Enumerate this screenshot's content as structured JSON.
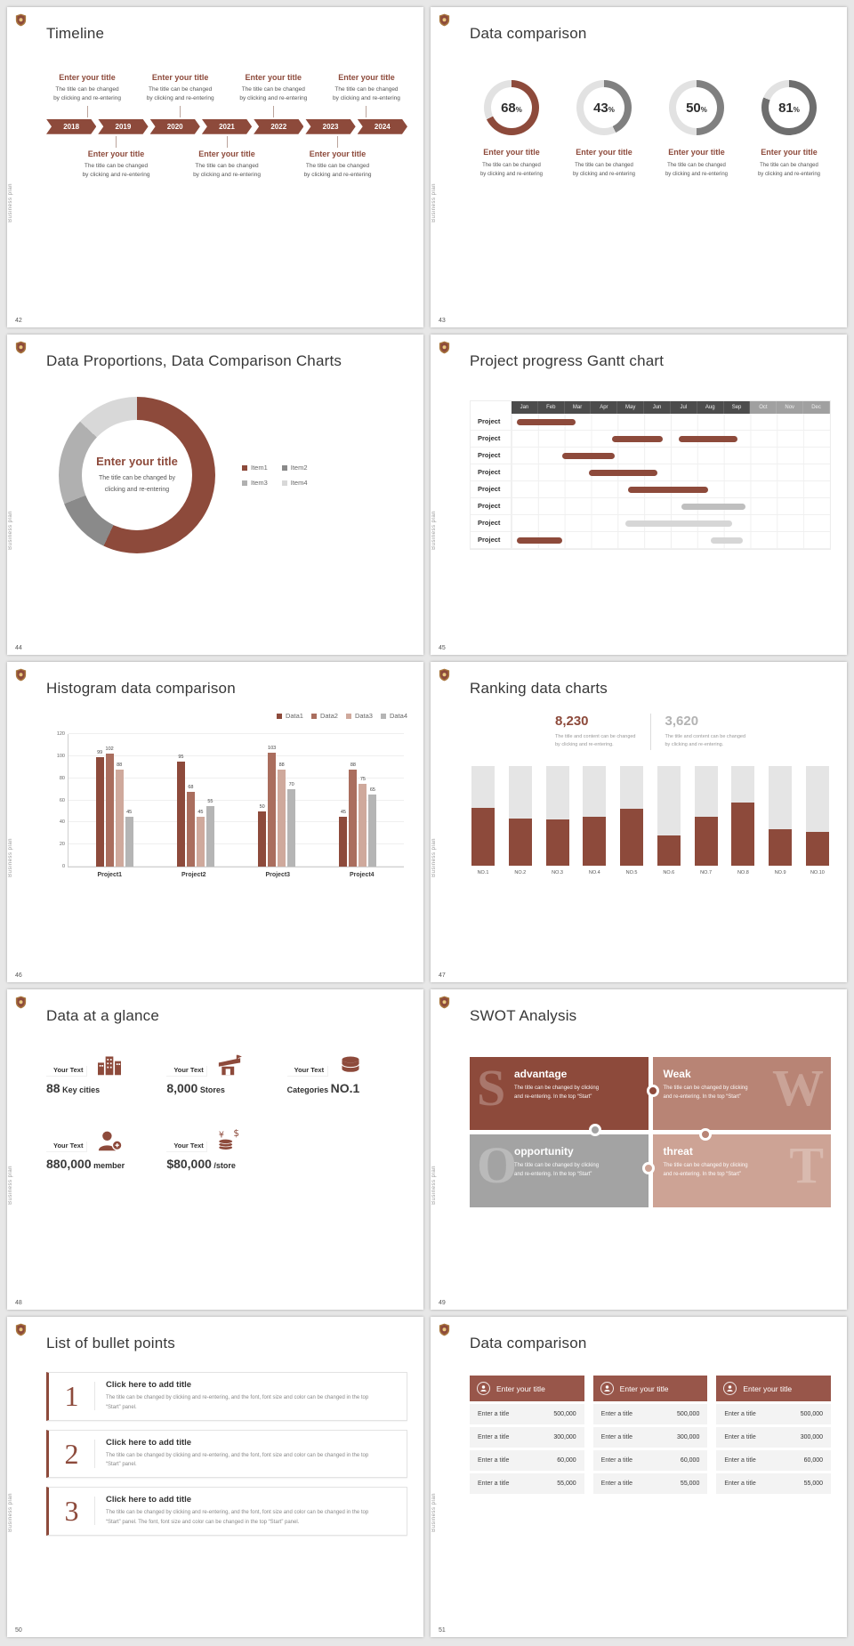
{
  "chrome": {
    "side_label": "Business plan",
    "accent_color": "#8d4a3b",
    "background_color": "#e7e7e7"
  },
  "slides": {
    "s42": {
      "number": "42",
      "title": "Timeline",
      "years": [
        "2018",
        "2019",
        "2020",
        "2021",
        "2022",
        "2023",
        "2024"
      ],
      "top_items": [
        {
          "title": "Enter your title",
          "desc": "The title can be changed\nby clicking and re-entering"
        },
        {
          "title": "Enter your title",
          "desc": "The title can be changed\nby clicking and re-entering"
        },
        {
          "title": "Enter your title",
          "desc": "The title can be changed\nby clicking and re-entering"
        },
        {
          "title": "Enter your title",
          "desc": "The title can be changed\nby clicking and re-entering"
        }
      ],
      "bottom_items": [
        {
          "title": "Enter your title",
          "desc": "The title can be changed\nby clicking and re-entering"
        },
        {
          "title": "Enter your title",
          "desc": "The title can be changed\nby clicking and re-entering"
        },
        {
          "title": "Enter your title",
          "desc": "The title can be changed\nby clicking and re-entering"
        }
      ]
    },
    "s43": {
      "number": "43",
      "title": "Data comparison",
      "rings": [
        {
          "percent": "68",
          "arc_color": "#8d4a3b",
          "title": "Enter your title",
          "desc": "The title can be changed\nby clicking and re-entering"
        },
        {
          "percent": "43",
          "arc_color": "#808080",
          "title": "Enter your title",
          "desc": "The title can be changed\nby clicking and re-entering"
        },
        {
          "percent": "50",
          "arc_color": "#808080",
          "title": "Enter your title",
          "desc": "The title can be changed\nby clicking and re-entering"
        },
        {
          "percent": "81",
          "arc_color": "#6e6e6e",
          "title": "Enter your title",
          "desc": "The title can be changed\nby clicking and re-entering"
        }
      ]
    },
    "s44": {
      "number": "44",
      "title": "Data Proportions, Data Comparison Charts",
      "center_title": "Enter your title",
      "center_desc": "The title can be changed by\nclicking and re-entering",
      "chart": {
        "type": "pie",
        "segments": [
          {
            "label": "Item1",
            "value": 57,
            "color": "#8d4a3b"
          },
          {
            "label": "Item2",
            "value": 12,
            "color": "#8a8a8a"
          },
          {
            "label": "Item3",
            "value": 18,
            "color": "#b0b0b0"
          },
          {
            "label": "Item4",
            "value": 13,
            "color": "#d8d8d8"
          }
        ]
      }
    },
    "s45": {
      "number": "45",
      "title": "Project progress Gantt chart",
      "months": [
        "Jan",
        "Feb",
        "Mar",
        "Apr",
        "May",
        "Jun",
        "Jul",
        "Aug",
        "Sep",
        "Oct",
        "Nov",
        "Dec"
      ],
      "rows": [
        {
          "label": "Project",
          "bars": [
            {
              "start": 0.2,
              "span": 2.2,
              "color": "#8d4a3b"
            }
          ]
        },
        {
          "label": "Project",
          "bars": [
            {
              "start": 3.8,
              "span": 1.9,
              "color": "#8d4a3b"
            },
            {
              "start": 6.3,
              "span": 2.2,
              "color": "#8d4a3b"
            }
          ]
        },
        {
          "label": "Project",
          "bars": [
            {
              "start": 1.9,
              "span": 2.0,
              "color": "#8d4a3b"
            }
          ]
        },
        {
          "label": "Project",
          "bars": [
            {
              "start": 2.9,
              "span": 2.6,
              "color": "#8d4a3b"
            }
          ]
        },
        {
          "label": "Project",
          "bars": [
            {
              "start": 4.4,
              "span": 3.0,
              "color": "#8d4a3b"
            }
          ]
        },
        {
          "label": "Project",
          "bars": [
            {
              "start": 6.4,
              "span": 2.4,
              "color": "#bfbfbf"
            }
          ]
        },
        {
          "label": "Project",
          "bars": [
            {
              "start": 4.3,
              "span": 4.0,
              "color": "#d6d6d6"
            }
          ]
        },
        {
          "label": "Project",
          "bars": [
            {
              "start": 0.2,
              "span": 1.7,
              "color": "#8d4a3b"
            },
            {
              "start": 7.5,
              "span": 1.2,
              "color": "#d6d6d6"
            }
          ]
        }
      ]
    },
    "s46": {
      "number": "46",
      "title": "Histogram data comparison",
      "chart": {
        "type": "bar",
        "categories": [
          "Project1",
          "Project2",
          "Project3",
          "Project4"
        ],
        "series": [
          {
            "name": "Data1",
            "color": "#8d4a3b",
            "values": [
              99,
              95,
              50,
              45
            ]
          },
          {
            "name": "Data2",
            "color": "#aa6e5e",
            "values": [
              102,
              68,
              103,
              88
            ]
          },
          {
            "name": "Data3",
            "color": "#cfa99c",
            "values": [
              88,
              45,
              88,
              75
            ]
          },
          {
            "name": "Data4",
            "color": "#b5b5b5",
            "values": [
              45,
              55,
              70,
              65
            ]
          }
        ],
        "ylim": [
          0,
          120
        ],
        "yticks": [
          0,
          20,
          40,
          60,
          80,
          100,
          120
        ]
      }
    },
    "s47": {
      "number": "47",
      "title": "Ranking data charts",
      "stats": [
        {
          "value": "8,230",
          "color": "#8d4a3b",
          "desc": "The title and content can be changed\nby clicking and re-entering."
        },
        {
          "value": "3,620",
          "color": "#b3b3b3",
          "desc": "The title and content can be changed\nby clicking and re-entering."
        }
      ],
      "chart": {
        "type": "bar",
        "categories": [
          "NO.1",
          "NO.2",
          "NO.3",
          "NO.4",
          "NO.5",
          "NO.6",
          "NO.7",
          "NO.8",
          "NO.9",
          "NO.10"
        ],
        "values": [
          58,
          47,
          46,
          49,
          57,
          30,
          49,
          63,
          36,
          34
        ],
        "track_max": 100
      }
    },
    "s48": {
      "number": "48",
      "title": "Data at a glance",
      "stats": [
        {
          "label": "Your Text",
          "icon": "building-icon",
          "value": "88",
          "suffix": "Key cities"
        },
        {
          "label": "Your Text",
          "icon": "store-icon",
          "value": "8,000",
          "suffix": "Stores"
        },
        {
          "label": "Your Text",
          "icon": "category-icon",
          "prefix": "Categories",
          "value": "NO.1"
        },
        {
          "label": "Your Text",
          "icon": "member-icon",
          "value": "880,000",
          "suffix": "member"
        },
        {
          "label": "Your Text",
          "icon": "money-icon",
          "value": "$80,000",
          "suffix": "/store"
        }
      ]
    },
    "s49": {
      "number": "49",
      "title": "SWOT Analysis",
      "quadrants": [
        {
          "letter": "S",
          "letter_side": "left",
          "title": "advantage",
          "color": "#8d4a3b",
          "desc": "The title can be changed by clicking\nand re-entering. In the top “Start”"
        },
        {
          "letter": "W",
          "letter_side": "right",
          "title": "Weak",
          "color": "#b88475",
          "desc": "The title can be changed by clicking\nand re-entering. In the top “Start”"
        },
        {
          "letter": "O",
          "letter_side": "left",
          "title": "opportunity",
          "color": "#a3a3a3",
          "desc": "The title can be changed by clicking\nand re-entering. In the top “Start”"
        },
        {
          "letter": "T",
          "letter_side": "right",
          "title": "threat",
          "color": "#cda395",
          "desc": "The title can be changed by clicking\nand re-entering. In the top “Start”"
        }
      ]
    },
    "s50": {
      "number": "50",
      "title": "List of bullet points",
      "items": [
        {
          "number": "1",
          "title": "Click here to add title",
          "desc": "The title can be changed by clicking and re-entering, and the font, font size and color can be changed in the top “Start” panel."
        },
        {
          "number": "2",
          "title": "Click here to add title",
          "desc": "The title can be changed by clicking and re-entering, and the font, font size and color can be changed in the top “Start” panel."
        },
        {
          "number": "3",
          "title": "Click here to add title",
          "desc": "The title can be changed by clicking and re-entering, and the font, font size and color can be changed in the top “Start” panel. The font, font size and color can be changed in the top “Start” panel."
        }
      ]
    },
    "s51": {
      "number": "51",
      "title": "Data comparison",
      "columns": [
        {
          "header": "Enter your title",
          "rows": [
            {
              "label": "Enter a title",
              "value": "500,000"
            },
            {
              "label": "Enter a title",
              "value": "300,000"
            },
            {
              "label": "Enter a title",
              "value": "60,000"
            },
            {
              "label": "Enter a title",
              "value": "55,000"
            }
          ]
        },
        {
          "header": "Enter your title",
          "rows": [
            {
              "label": "Enter a title",
              "value": "500,000"
            },
            {
              "label": "Enter a title",
              "value": "300,000"
            },
            {
              "label": "Enter a title",
              "value": "60,000"
            },
            {
              "label": "Enter a title",
              "value": "55,000"
            }
          ]
        },
        {
          "header": "Enter your title",
          "rows": [
            {
              "label": "Enter a title",
              "value": "500,000"
            },
            {
              "label": "Enter a title",
              "value": "300,000"
            },
            {
              "label": "Enter a title",
              "value": "60,000"
            },
            {
              "label": "Enter a title",
              "value": "55,000"
            }
          ]
        }
      ]
    }
  }
}
